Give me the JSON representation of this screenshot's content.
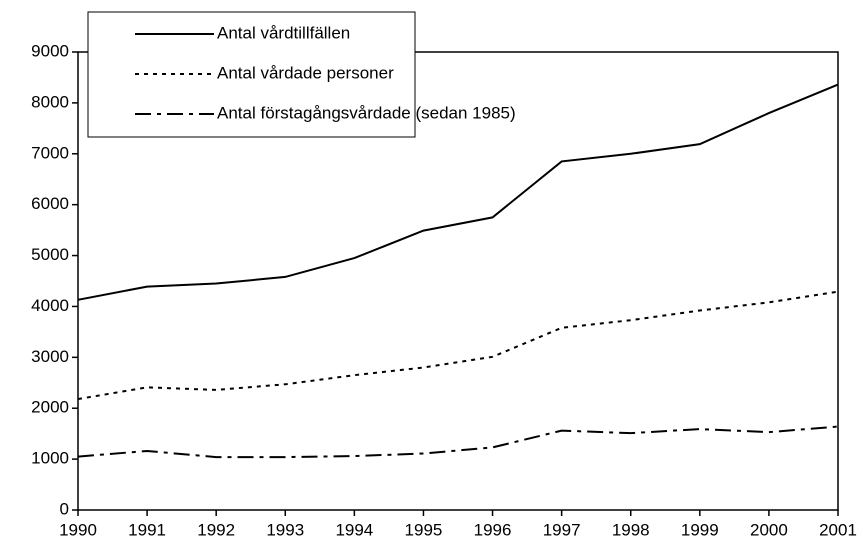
{
  "chart_data": {
    "type": "line",
    "x": [
      1990,
      1991,
      1992,
      1993,
      1994,
      1995,
      1996,
      1997,
      1998,
      1999,
      2000,
      2001
    ],
    "series": [
      {
        "name": "Antal vårdtillfällen",
        "color": "#000000",
        "style": "solid",
        "values": [
          4130,
          4390,
          4450,
          4580,
          4950,
          5490,
          5750,
          6850,
          7000,
          7190,
          7800,
          8360
        ]
      },
      {
        "name": "Antal vårdade personer",
        "color": "#000000",
        "style": "dotted",
        "values": [
          2180,
          2410,
          2360,
          2470,
          2650,
          2800,
          3010,
          3580,
          3730,
          3920,
          4080,
          4290
        ]
      },
      {
        "name": "Antal förstagångsvårdade (sedan 1985)",
        "color": "#000000",
        "style": "dashdot",
        "values": [
          1050,
          1160,
          1040,
          1040,
          1060,
          1110,
          1230,
          1560,
          1510,
          1590,
          1530,
          1640
        ]
      }
    ],
    "xlim": [
      1990,
      2001
    ],
    "xticks": [
      1990,
      1991,
      1992,
      1993,
      1994,
      1995,
      1996,
      1997,
      1998,
      1999,
      2000,
      2001
    ],
    "ylim": [
      0,
      9000
    ],
    "yticks": [
      0,
      1000,
      2000,
      3000,
      4000,
      5000,
      6000,
      7000,
      8000,
      9000
    ],
    "grid": false,
    "legend": "upper-left"
  }
}
